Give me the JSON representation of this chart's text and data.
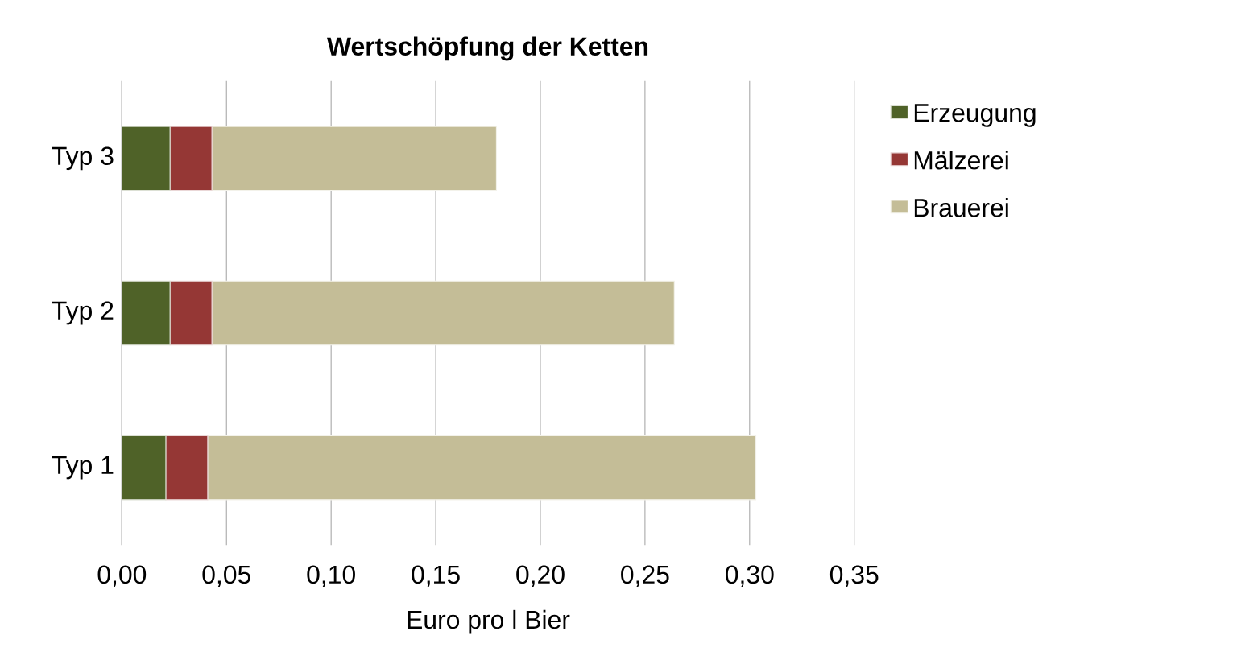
{
  "chart_data": {
    "type": "bar",
    "orientation": "horizontal",
    "stacked": true,
    "title": "Wertschöpfung der Ketten",
    "xlabel": "Euro pro l Bier",
    "categories": [
      "Typ 3",
      "Typ 2",
      "Typ 1"
    ],
    "series": [
      {
        "name": "Erzeugung",
        "color": "#4f6228",
        "values": [
          0.023,
          0.023,
          0.021
        ]
      },
      {
        "name": "Mälzerei",
        "color": "#953735",
        "values": [
          0.02,
          0.02,
          0.02
        ]
      },
      {
        "name": "Brauerei",
        "color": "#c4bd97",
        "values": [
          0.136,
          0.221,
          0.262
        ]
      }
    ],
    "xlim": [
      0,
      0.35
    ],
    "xticks": [
      {
        "value": 0,
        "label": "0,00"
      },
      {
        "value": 0.05,
        "label": "0,05"
      },
      {
        "value": 0.1,
        "label": "0,10"
      },
      {
        "value": 0.15,
        "label": "0,15"
      },
      {
        "value": 0.2,
        "label": "0,20"
      },
      {
        "value": 0.25,
        "label": "0,25"
      },
      {
        "value": 0.3,
        "label": "0,30"
      },
      {
        "value": 0.35,
        "label": "0,35"
      }
    ],
    "grid": "x",
    "legend": "right"
  }
}
